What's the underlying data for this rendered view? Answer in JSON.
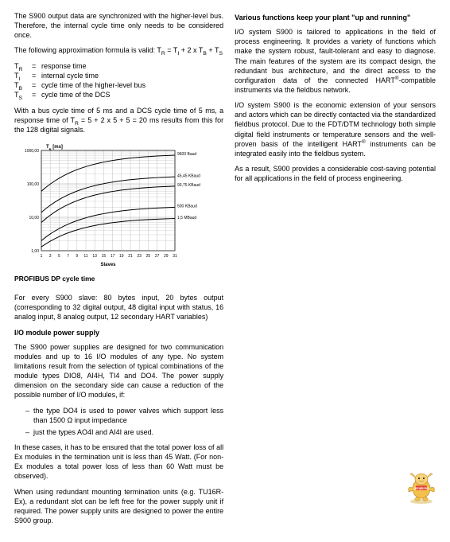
{
  "left": {
    "p1": "The S900 output data are synchronized with the higher-level bus. Therefore, the internal cycle time only needs to be considered once.",
    "p2_prefix": "The following approximation formula is valid: ",
    "formula": "T_R = T_I + 2 × T_B + T_S",
    "vars": [
      {
        "sym": "T_R",
        "desc": "response time"
      },
      {
        "sym": "T_I",
        "desc": "internal cycle time"
      },
      {
        "sym": "T_B",
        "desc": "cycle time of the higher-level bus"
      },
      {
        "sym": "T_S",
        "desc": "cycle time of the DCS"
      }
    ],
    "p3": "With a bus cycle time of 5 ms and a DCS cycle time of 5 ms, a response time of T_R = 5 + 2 × 5 + 5 = 20 ms results from this for the 128 digital signals.",
    "chart": {
      "caption": "PROFIBUS DP cycle time",
      "x_label": "Slaves",
      "y_label": "T_B [ms]",
      "x_ticks": [
        1,
        3,
        5,
        7,
        9,
        11,
        13,
        15,
        17,
        19,
        21,
        23,
        25,
        27,
        29,
        31
      ],
      "y_ticks": [
        1.0,
        10.0,
        100.0,
        1000.0
      ],
      "y_log": true,
      "series": [
        {
          "label": "9600 Baud",
          "y_at_xmax": 800,
          "y_at_x1": 60
        },
        {
          "label": "45,45 KBaud",
          "y_at_xmax": 180,
          "y_at_x1": 14
        },
        {
          "label": "93,75 KBaud",
          "y_at_xmax": 95,
          "y_at_x1": 7
        },
        {
          "label": "500 KBaud",
          "y_at_xmax": 22,
          "y_at_x1": 2
        },
        {
          "label": "1,5 MBaud",
          "y_at_xmax": 10,
          "y_at_x1": 1.3
        }
      ],
      "line_color": "#000000",
      "grid_color": "#666666",
      "background_color": "#ffffff",
      "axis_fontsize": 5,
      "label_fontsize": 6
    },
    "p4": "For every S900 slave: 80 bytes input, 20 bytes output (corresponding to 32 digital output, 48 digital input with status, 16 analog input, 8 analog output, 12 secondary HART variables)",
    "h1": "I/O module power supply",
    "p5": "The S900 power supplies are designed for two communication modules and up to 16 I/O modules of any type. No system limitations result from the selection of typical combinations of the module types DIO8, AI4H, TI4 and DO4. The power supply dimension on the secondary side can cause a reduction of the possible number of I/O modules, if:",
    "b1": "the type DO4 is used to power valves which support less than 1500 Ω input impedance",
    "b2": "just the types AO4I and AI4I are used.",
    "p6": "In these cases, it has to be ensured that the total power loss of all Ex modules in the termination unit is less than 45 Watt. (For non-Ex modules a total power loss of less than 60 Watt must be observed).",
    "p7": "When using redundant mounting termination units (e.g. TU16R-Ex), a redundant slot can be left free for the power supply unit if required. The power supply units are designed to power the entire S900 group."
  },
  "right": {
    "h1": "Various functions keep your plant \"up and running\"",
    "p1": "I/O system S900 is tailored to applications in the field of process engineering. It provides a variety of functions which make the system robust, fault-tolerant and easy to diagnose. The main features of the system are its compact design, the redundant bus architecture, and the direct access to the configuration data of the connected HART®-compatible instruments via the fieldbus network.",
    "p2": "I/O system S900 is the economic extension of your sensors and actors which can be directly contacted via the standardized fieldbus protocol. Due to the FDT/DTM technology both simple digital field instruments or temperature sensors and the well-proven basis of the intelligent HART® instruments can be integrated easily into the fieldbus system.",
    "p3": "As a result, S900 provides a considerable cost-saving potential for all applications in the field of process engineering."
  }
}
